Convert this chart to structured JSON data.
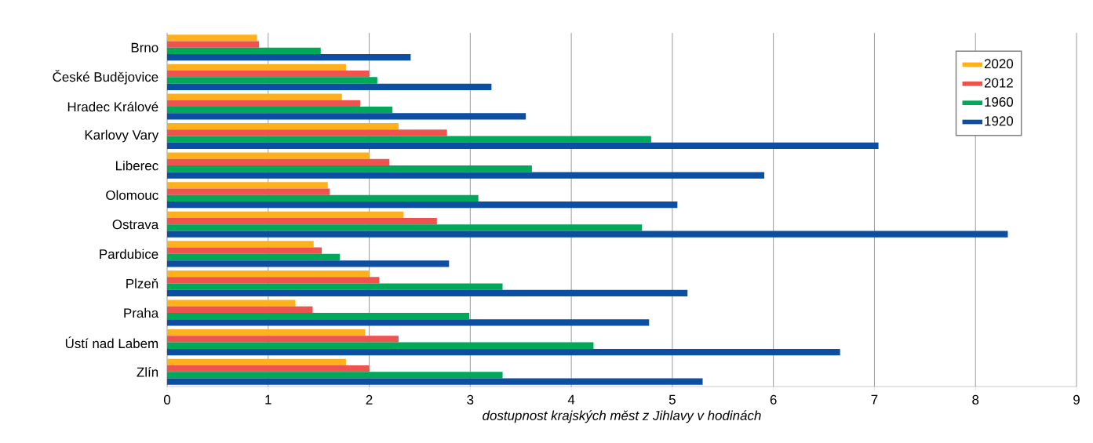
{
  "chart_data": {
    "type": "bar",
    "orientation": "horizontal",
    "xlabel": "dostupnost krajských měst z Jihlavy v hodinách",
    "categories": [
      "Brno",
      "České Budějovice",
      "Hradec Králové",
      "Karlovy Vary",
      "Liberec",
      "Olomouc",
      "Ostrava",
      "Pardubice",
      "Plzeň",
      "Praha",
      "Ústí nad Labem",
      "Zlín"
    ],
    "series": [
      {
        "name": "2020",
        "color": "#ffb11b",
        "values": [
          0.89,
          1.77,
          1.73,
          2.29,
          2.0,
          1.59,
          2.34,
          1.45,
          2.0,
          1.27,
          1.96,
          1.77
        ]
      },
      {
        "name": "2012",
        "color": "#ef5350",
        "values": [
          0.91,
          2.0,
          1.91,
          2.77,
          2.2,
          1.61,
          2.67,
          1.53,
          2.1,
          1.44,
          2.29,
          2.0
        ]
      },
      {
        "name": "1960",
        "color": "#00a859",
        "values": [
          1.52,
          2.08,
          2.23,
          4.79,
          3.61,
          3.08,
          4.7,
          1.71,
          3.32,
          2.99,
          4.22,
          3.32
        ]
      },
      {
        "name": "1920",
        "color": "#0b4ea2",
        "values": [
          2.41,
          3.21,
          3.55,
          7.04,
          5.91,
          5.05,
          8.32,
          2.79,
          5.15,
          4.77,
          6.66,
          5.3
        ]
      }
    ],
    "xlim": [
      0,
      9
    ],
    "xticks": [
      0,
      1,
      2,
      3,
      4,
      5,
      6,
      7,
      8,
      9
    ],
    "grid": "x",
    "legend": "top right"
  }
}
